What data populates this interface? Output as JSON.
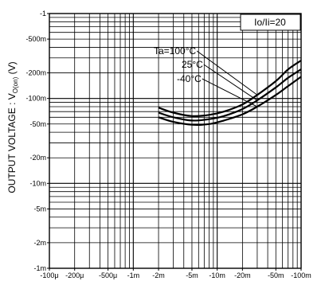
{
  "chart_data": {
    "type": "line",
    "ylabel": "OUTPUT VOLTAGE : V",
    "ylabel_sub": "O(on)",
    "ylabel_unit": " (V)",
    "x_scale": "log",
    "y_scale": "log",
    "xlim": [
      0.0001,
      0.1
    ],
    "ylim": [
      0.001,
      1
    ],
    "grid": true,
    "x_ticks": [
      {
        "value": 0.0001,
        "label": "-100μ"
      },
      {
        "value": 0.0002,
        "label": "-200μ"
      },
      {
        "value": 0.0005,
        "label": "-500μ"
      },
      {
        "value": 0.001,
        "label": "-1m"
      },
      {
        "value": 0.002,
        "label": "-2m"
      },
      {
        "value": 0.005,
        "label": "-5m"
      },
      {
        "value": 0.01,
        "label": "-10m"
      },
      {
        "value": 0.02,
        "label": "-20m"
      },
      {
        "value": 0.05,
        "label": "-50m"
      },
      {
        "value": 0.1,
        "label": "-100m"
      }
    ],
    "y_ticks": [
      {
        "value": 1,
        "label": "-1"
      },
      {
        "value": 0.5,
        "label": "-500m"
      },
      {
        "value": 0.2,
        "label": "-200m"
      },
      {
        "value": 0.1,
        "label": "-100m"
      },
      {
        "value": 0.05,
        "label": "-50m"
      },
      {
        "value": 0.02,
        "label": "-20m"
      },
      {
        "value": 0.01,
        "label": "-10m"
      },
      {
        "value": 0.005,
        "label": "-5m"
      },
      {
        "value": 0.002,
        "label": "-2m"
      },
      {
        "value": 0.001,
        "label": "-1m"
      }
    ],
    "legend_box": "Io/Ii=20",
    "series": [
      {
        "name": "Ta=100°C",
        "x": [
          0.002,
          0.003,
          0.005,
          0.008,
          0.012,
          0.02,
          0.03,
          0.05,
          0.07,
          0.1
        ],
        "y": [
          0.078,
          0.068,
          0.062,
          0.064,
          0.07,
          0.085,
          0.11,
          0.16,
          0.22,
          0.28
        ]
      },
      {
        "name": "25°C",
        "x": [
          0.002,
          0.003,
          0.005,
          0.008,
          0.012,
          0.02,
          0.03,
          0.05,
          0.07,
          0.1
        ],
        "y": [
          0.068,
          0.06,
          0.055,
          0.057,
          0.062,
          0.075,
          0.095,
          0.135,
          0.175,
          0.22
        ]
      },
      {
        "name": "-40°C",
        "x": [
          0.002,
          0.003,
          0.005,
          0.008,
          0.012,
          0.02,
          0.03,
          0.05,
          0.07,
          0.1
        ],
        "y": [
          0.06,
          0.053,
          0.049,
          0.05,
          0.055,
          0.065,
          0.08,
          0.11,
          0.14,
          0.18
        ]
      }
    ]
  }
}
